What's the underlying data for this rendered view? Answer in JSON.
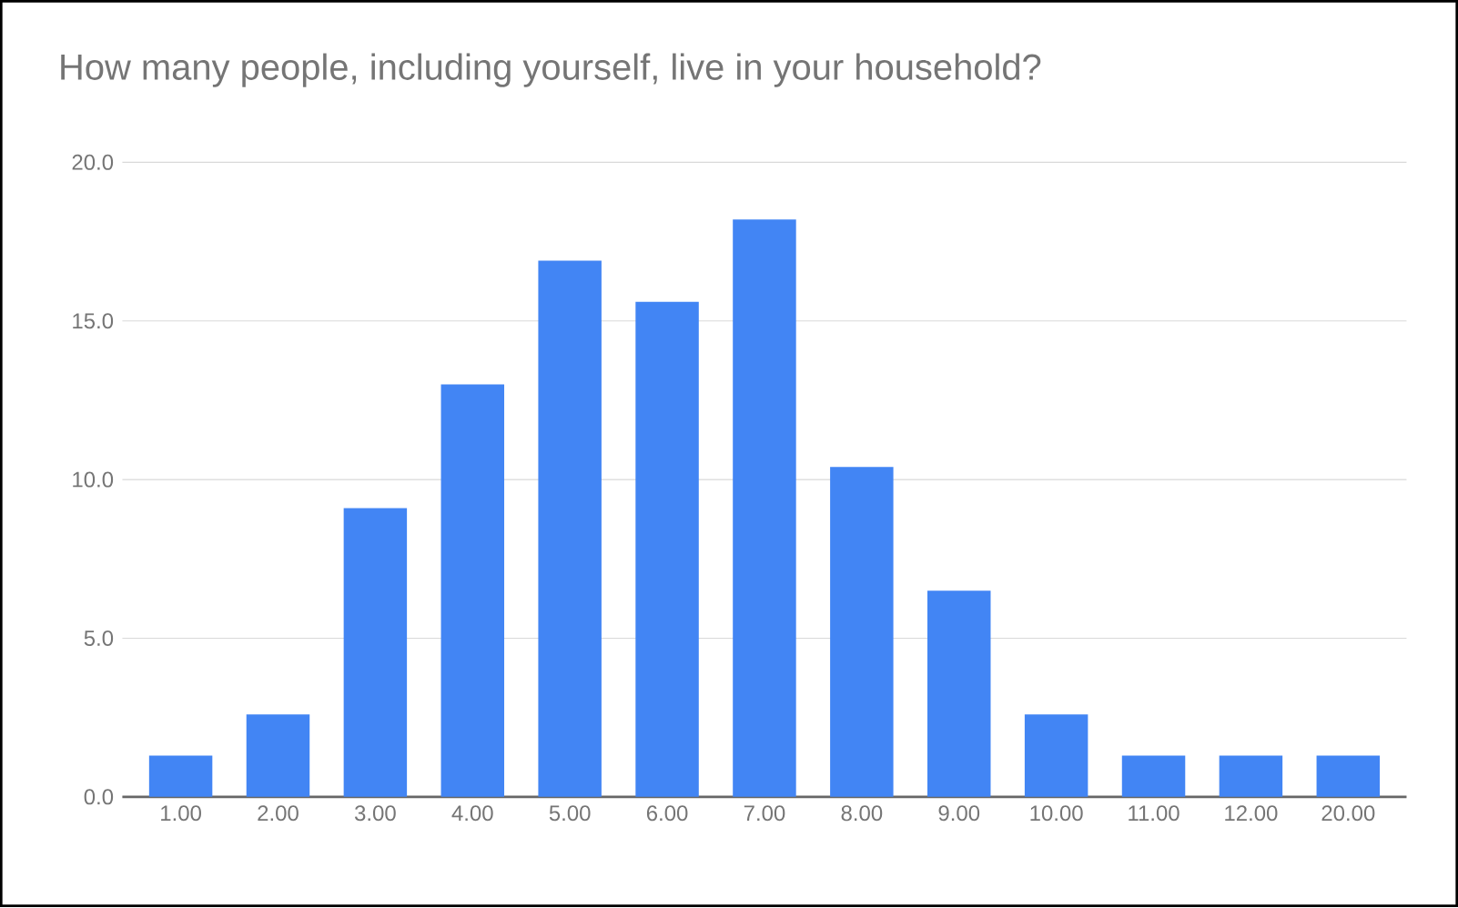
{
  "chart_data": {
    "type": "bar",
    "title": "How many people, including yourself, live in your household?",
    "categories": [
      "1.00",
      "2.00",
      "3.00",
      "4.00",
      "5.00",
      "6.00",
      "7.00",
      "8.00",
      "9.00",
      "10.00",
      "11.00",
      "12.00",
      "20.00"
    ],
    "values": [
      1.3,
      2.6,
      9.1,
      13.0,
      16.9,
      15.6,
      18.2,
      10.4,
      6.5,
      2.6,
      1.3,
      1.3,
      1.3
    ],
    "color": "#4285f4",
    "ylim": [
      0,
      20
    ],
    "yticks": [
      {
        "value": 0,
        "label": "0.0"
      },
      {
        "value": 5,
        "label": "5.0"
      },
      {
        "value": 10,
        "label": "10.0"
      },
      {
        "value": 15,
        "label": "15.0"
      },
      {
        "value": 20,
        "label": "20.0"
      }
    ],
    "grid": "y"
  }
}
